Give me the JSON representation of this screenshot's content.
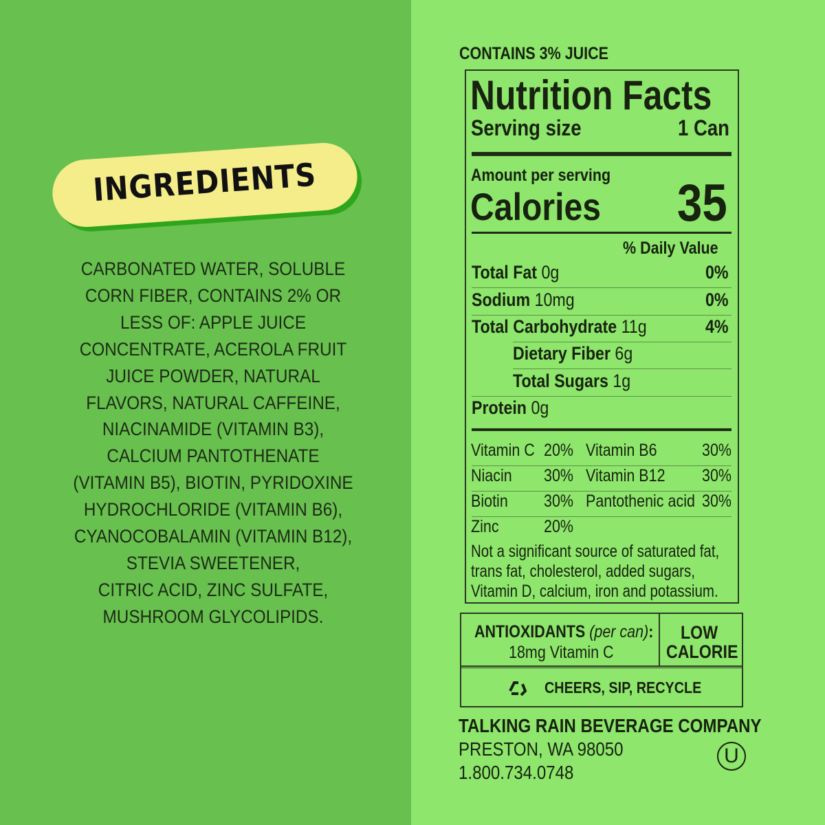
{
  "ingredients": {
    "title": "INGREDIENTS",
    "lines": [
      "CARBONATED WATER, SOLUBLE",
      "CORN FIBER, CONTAINS 2% OR",
      "LESS OF: APPLE JUICE",
      "CONCENTRATE, ACEROLA FRUIT",
      "JUICE POWDER, NATURAL",
      "FLAVORS, NATURAL CAFFEINE,",
      "NIACINAMIDE (VITAMIN B3),",
      "CALCIUM PANTOTHENATE",
      "(VITAMIN B5), BIOTIN, PYRIDOXINE",
      "HYDROCHLORIDE (VITAMIN B6),",
      "CYANOCOBALAMIN (VITAMIN B12),",
      "STEVIA SWEETENER,",
      "CITRIC ACID, ZINC SULFATE,",
      "MUSHROOM GLYCOLIPIDS."
    ]
  },
  "juice": "CONTAINS 3% JUICE",
  "nutrition": {
    "title": "Nutrition Facts",
    "serving_label": "Serving size",
    "serving_value": "1 Can",
    "amount_label": "Amount per serving",
    "calories_label": "Calories",
    "calories": "35",
    "dv_label": "% Daily Value",
    "rows": [
      {
        "name": "Total Fat",
        "amount": "0g",
        "dv": "0%"
      },
      {
        "name": "Sodium",
        "amount": "10mg",
        "dv": "0%"
      },
      {
        "name": "Total Carbohydrate",
        "amount": "11g",
        "dv": "4%"
      },
      {
        "name": "Dietary Fiber",
        "amount": "6g",
        "dv": ""
      },
      {
        "name": "Total Sugars",
        "amount": "1g",
        "dv": ""
      },
      {
        "name": "Protein",
        "amount": "0g",
        "dv": ""
      }
    ],
    "vitamins": [
      [
        "Vitamin C",
        "20%",
        "Vitamin B6",
        "30%"
      ],
      [
        "Niacin",
        "30%",
        "Vitamin B12",
        "30%"
      ],
      [
        "Biotin",
        "30%",
        "Pantothenic acid",
        "30%"
      ],
      [
        "Zinc",
        "20%",
        "",
        ""
      ]
    ],
    "footnote": [
      "Not a significant source of saturated fat,",
      "trans fat, cholesterol, added sugars,",
      "Vitamin D, calcium, iron and potassium."
    ]
  },
  "antioxidants": {
    "label": "ANTIOXIDANTS",
    "note": "(per can)",
    "colon": ":",
    "value": "18mg Vitamin C"
  },
  "low_calorie": [
    "LOW",
    "CALORIE"
  ],
  "recycle": "CHEERS, SIP, RECYCLE",
  "company": {
    "name": "TALKING RAIN BEVERAGE COMPANY",
    "address": "PRESTON, WA 98050",
    "phone": "1.800.734.0748",
    "kosher": "U"
  },
  "colors": {
    "left_bg": "#68c04f",
    "right_bg": "#8ee66c",
    "badge": "#f5ec8a",
    "text": "#17220f"
  }
}
